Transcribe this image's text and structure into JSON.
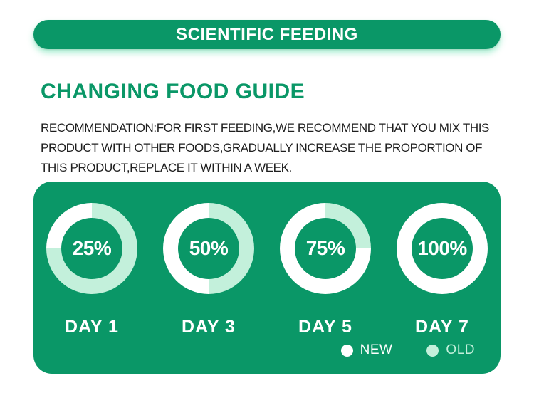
{
  "banner": {
    "title": "SCIENTIFIC FEEDING"
  },
  "section": {
    "heading": "CHANGING FOOD GUIDE",
    "description_lines": [
      "RECOMMENDATION:FOR FIRST FEEDING,WE RECOMMEND THAT YOU MIX THIS",
      "PRODUCT WITH OTHER FOODS,GRADUALLY INCREASE THE PROPORTION OF",
      "THIS PRODUCT,REPLACE IT WITHIN A WEEK."
    ]
  },
  "colors": {
    "green": "#0a9767",
    "mint": "#c3f0db",
    "white": "#ffffff",
    "text": "#1e1e1e"
  },
  "chart_data": {
    "type": "pie",
    "variant": "donut-multiples",
    "categories": [
      "DAY 1",
      "DAY 3",
      "DAY 5",
      "DAY 7"
    ],
    "series": [
      {
        "name": "NEW",
        "color": "#ffffff",
        "values": [
          25,
          50,
          75,
          100
        ]
      },
      {
        "name": "OLD",
        "color": "#c3f0db",
        "values": [
          75,
          50,
          25,
          0
        ]
      }
    ],
    "value_label_format": "{new}%",
    "old_segment_sweep": "clockwise-from-top",
    "legend_position": "bottom-right",
    "grid": false
  }
}
